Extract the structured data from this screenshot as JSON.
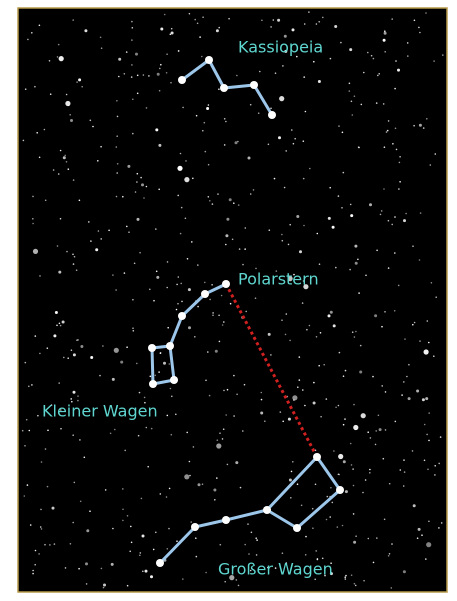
{
  "labels": [
    "Kassiopeia",
    "Polarstern",
    "Kleiner Wagen",
    "Großer Wagen"
  ]
}
